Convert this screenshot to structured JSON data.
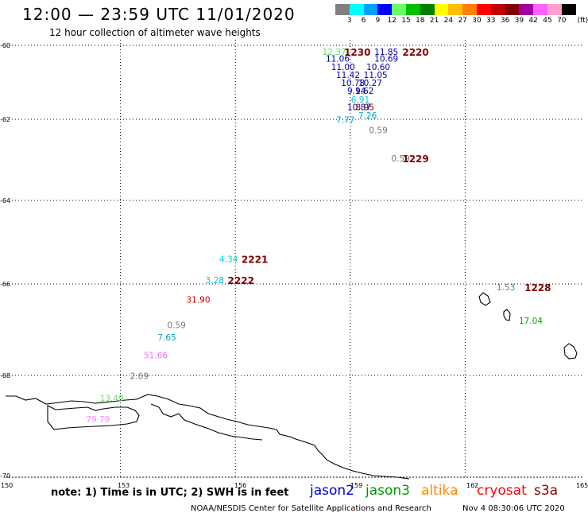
{
  "title": "12:00 — 23:59 UTC 11/01/2020",
  "subtitle": "12 hour collection of altimeter wave heights",
  "colorbar": {
    "unit": "(ft)",
    "colors": [
      "#808080",
      "#00ffff",
      "#00a0ff",
      "#0000ff",
      "#66ff66",
      "#00c000",
      "#008000",
      "#ffff00",
      "#ffc000",
      "#ff8000",
      "#ff0000",
      "#c00000",
      "#800000",
      "#a000a0",
      "#ff60ff",
      "#ffa0d0",
      "#000000"
    ],
    "labels": [
      "3",
      "6",
      "9",
      "12",
      "15",
      "18",
      "21",
      "24",
      "27",
      "30",
      "33",
      "36",
      "39",
      "42",
      "45",
      "70"
    ]
  },
  "axes": {
    "lon_labels": [
      "150",
      "153",
      "156",
      "159",
      "162",
      "165"
    ],
    "lat_labels": [
      "-60",
      "-62",
      "-64",
      "-66",
      "-68",
      "-70"
    ]
  },
  "observations": [
    {
      "text": "12.37",
      "color": "#66dd66",
      "lon": 158.27,
      "lat": -60.06
    },
    {
      "text": "11.85",
      "color": "#0000aa",
      "lon": 159.63,
      "lat": -60.06
    },
    {
      "text": "11.06",
      "color": "#0000aa",
      "lon": 158.36,
      "lat": -60.25
    },
    {
      "text": "10.69",
      "color": "#0000aa",
      "lon": 159.63,
      "lat": -60.25
    },
    {
      "text": "11.00",
      "color": "#0000aa",
      "lon": 158.5,
      "lat": -60.47
    },
    {
      "text": "10.60",
      "color": "#0000aa",
      "lon": 159.42,
      "lat": -60.47
    },
    {
      "text": "11.42",
      "color": "#0000aa",
      "lon": 158.63,
      "lat": -60.69
    },
    {
      "text": "11.05",
      "color": "#0000aa",
      "lon": 159.35,
      "lat": -60.69
    },
    {
      "text": "10.78",
      "color": "#0000aa",
      "lon": 158.76,
      "lat": -60.9
    },
    {
      "text": "10.27",
      "color": "#0000aa",
      "lon": 159.21,
      "lat": -60.9
    },
    {
      "text": "9.14",
      "color": "#0000aa",
      "lon": 158.92,
      "lat": -61.12
    },
    {
      "text": "9.62",
      "color": "#0000aa",
      "lon": 159.13,
      "lat": -61.12
    },
    {
      "text": "6.91",
      "color": "#00cccc",
      "lon": 159.02,
      "lat": -61.35
    },
    {
      "text": "10.87",
      "color": "#0000aa",
      "lon": 158.92,
      "lat": -61.56
    },
    {
      "text": "8.95",
      "color": "#800000",
      "lon": 159.14,
      "lat": -61.56
    },
    {
      "text": "7.26",
      "color": "#00a0cc",
      "lon": 159.21,
      "lat": -61.78
    },
    {
      "text": "7.77",
      "color": "#00a0cc",
      "lon": 158.63,
      "lat": -61.9
    },
    {
      "text": "0.59",
      "color": "#777777",
      "lon": 159.49,
      "lat": -62.17
    },
    {
      "text": "0.59",
      "color": "#777777",
      "lon": 160.07,
      "lat": -62.86
    },
    {
      "text": "4.34",
      "color": "#00cccc",
      "lon": 155.58,
      "lat": -65.3
    },
    {
      "text": "3.28",
      "color": "#00cccc",
      "lon": 155.22,
      "lat": -65.81
    },
    {
      "text": "31.90",
      "color": "#cc0000",
      "lon": 154.72,
      "lat": -66.25
    },
    {
      "text": "0.59",
      "color": "#777777",
      "lon": 154.22,
      "lat": -66.81
    },
    {
      "text": "7.65",
      "color": "#00a0cc",
      "lon": 153.97,
      "lat": -67.08
    },
    {
      "text": "51.66",
      "color": "#ff66ff",
      "lon": 153.61,
      "lat": -67.47
    },
    {
      "text": "2.69",
      "color": "#777777",
      "lon": 153.25,
      "lat": -67.92
    },
    {
      "text": "13.49",
      "color": "#66dd66",
      "lon": 152.46,
      "lat": -68.37
    },
    {
      "text": "79.79",
      "color": "#ff88ff",
      "lon": 152.1,
      "lat": -68.79
    },
    {
      "text": "1.53",
      "color": "#777777",
      "lon": 162.82,
      "lat": -65.98
    },
    {
      "text": "17.04",
      "color": "#00aa00",
      "lon": 163.4,
      "lat": -66.71
    }
  ],
  "pass_times": [
    {
      "text": "1230",
      "lon": 158.84,
      "lat": -60.06
    },
    {
      "text": "2220",
      "lon": 160.36,
      "lat": -60.06
    },
    {
      "text": "1229",
      "lon": 160.36,
      "lat": -62.86
    },
    {
      "text": "2221",
      "lon": 156.16,
      "lat": -65.3
    },
    {
      "text": "2222",
      "lon": 155.8,
      "lat": -65.81
    },
    {
      "text": "1228",
      "lon": 163.55,
      "lat": -65.98
    }
  ],
  "note": "note: 1) Time is in UTC; 2) SWH is in feet",
  "legend": [
    {
      "text": "jason2",
      "color": "#0000cc"
    },
    {
      "text": "jason3",
      "color": "#009900"
    },
    {
      "text": "altika",
      "color": "#ff8800"
    },
    {
      "text": "cryosat",
      "color": "#ff0000"
    },
    {
      "text": "s3a",
      "color": "#880000"
    }
  ],
  "credit": "NOAA/NESDIS Center for Satellite Applications and Research",
  "timestamp": "Nov  4 08:30:06 UTC 2020"
}
